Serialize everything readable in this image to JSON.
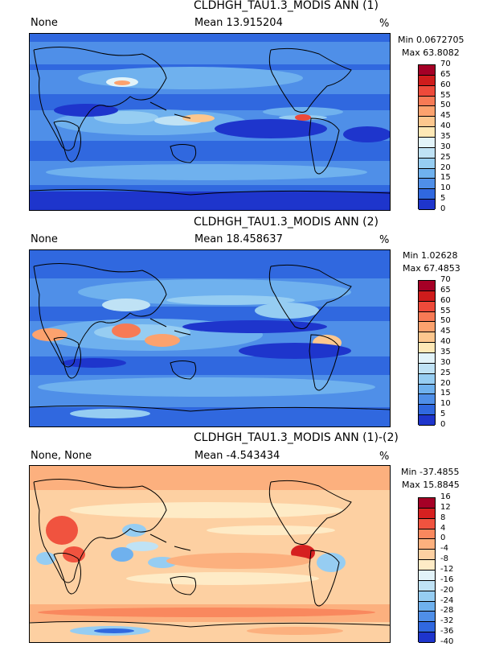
{
  "panels": [
    {
      "title": "CLDHGH_TAU1.3_MODIS ANN (1)",
      "left_label": "None",
      "mean_label": "Mean 13.915204",
      "units": "%",
      "min_label": "Min 0.0672705",
      "max_label": "Max 63.8082"
    },
    {
      "title": "CLDHGH_TAU1.3_MODIS ANN (2)",
      "left_label": "None",
      "mean_label": "Mean 18.458637",
      "units": "%",
      "min_label": "Min 1.02628",
      "max_label": "Max 67.4853"
    },
    {
      "title": "CLDHGH_TAU1.3_MODIS ANN (1)-(2)",
      "left_label": "None, None",
      "mean_label": "Mean -4.543434",
      "units": "%",
      "min_label": "Min -37.4855",
      "max_label": "Max 15.8845"
    }
  ],
  "colorbars": {
    "abs_labels": [
      "70",
      "65",
      "60",
      "55",
      "50",
      "45",
      "40",
      "35",
      "30",
      "25",
      "20",
      "15",
      "10",
      "5",
      "0"
    ],
    "abs_colors": [
      "#a50026",
      "#cf1c1c",
      "#ee4a3a",
      "#f77a55",
      "#fca26e",
      "#fdc78e",
      "#fee8b6",
      "#e2f3f9",
      "#bfe2f5",
      "#96cdf2",
      "#6fb1ee",
      "#4f8fe8",
      "#3068df",
      "#1e35cc"
    ],
    "diff_labels": [
      "16",
      "12",
      "8",
      "4",
      "0",
      "-4",
      "-8",
      "-12",
      "-16",
      "-20",
      "-24",
      "-28",
      "-32",
      "-36",
      "-40"
    ],
    "diff_colors": [
      "#a50026",
      "#d62020",
      "#f0533f",
      "#f9885e",
      "#fcb07e",
      "#fdd0a2",
      "#feebc6",
      "#e2f3f9",
      "#bfe2f5",
      "#96cdf2",
      "#6fb1ee",
      "#4f8fe8",
      "#3068df",
      "#1e35cc"
    ]
  },
  "chart_data": [
    {
      "type": "heatmap",
      "title": "CLDHGH_TAU1.3_MODIS ANN (1)",
      "units": "%",
      "mean": 13.915204,
      "min": 0.0672705,
      "max": 63.8082,
      "levels": [
        0,
        5,
        10,
        15,
        20,
        25,
        30,
        35,
        40,
        45,
        50,
        55,
        60,
        65,
        70
      ]
    },
    {
      "type": "heatmap",
      "title": "CLDHGH_TAU1.3_MODIS ANN (2)",
      "units": "%",
      "mean": 18.458637,
      "min": 1.02628,
      "max": 67.4853,
      "levels": [
        0,
        5,
        10,
        15,
        20,
        25,
        30,
        35,
        40,
        45,
        50,
        55,
        60,
        65,
        70
      ]
    },
    {
      "type": "heatmap",
      "title": "CLDHGH_TAU1.3_MODIS ANN (1)-(2)",
      "units": "%",
      "mean": -4.543434,
      "min": -37.4855,
      "max": 15.8845,
      "levels": [
        -40,
        -36,
        -32,
        -28,
        -24,
        -20,
        -16,
        -12,
        -8,
        -4,
        0,
        4,
        8,
        12,
        16
      ]
    }
  ]
}
